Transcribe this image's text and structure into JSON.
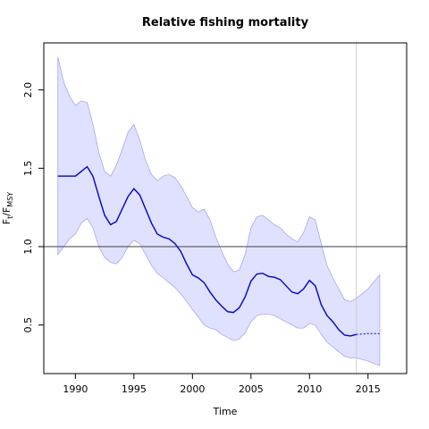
{
  "chart_data": {
    "type": "line",
    "title": "Relative fishing mortality",
    "xlabel": "Time",
    "ylabel": {
      "base": "F",
      "sub1": "t",
      "sep": "/F",
      "sub2": "MSY"
    },
    "xlim": [
      1987.3,
      2018.3
    ],
    "ylim": [
      0.19,
      2.3
    ],
    "x_ticks": [
      1990,
      1995,
      2000,
      2005,
      2010,
      2015
    ],
    "x_tick_labels": [
      "1990",
      "1995",
      "2000",
      "2005",
      "2010",
      "2015"
    ],
    "y_ticks": [
      0.5,
      1.0,
      1.5,
      2.0
    ],
    "y_tick_labels": [
      "0.5",
      "1.0",
      "1.5",
      "2.0"
    ],
    "reference_line_y": 1.0,
    "vertical_line_x": 2014,
    "colors": {
      "line": "#0000cc",
      "band_fill": "#e0e0ff",
      "band_edge": "#a8a8f0",
      "reference_line": "#555555",
      "vertical_line": "#cccccc"
    },
    "series": [
      {
        "role": "estimate",
        "x": [
          1988.5,
          1989.5,
          1990.0,
          1990.5,
          1991.0,
          1991.5,
          1992.0,
          1992.5,
          1993.0,
          1993.5,
          1994.0,
          1994.5,
          1995.0,
          1995.5,
          1996.0,
          1996.5,
          1997.0,
          1997.5,
          1998.0,
          1998.5,
          1999.0,
          1999.5,
          2000.0,
          2000.5,
          2001.0,
          2001.5,
          2002.0,
          2002.5,
          2003.0,
          2003.5,
          2004.0,
          2004.5,
          2005.0,
          2005.5,
          2006.0,
          2006.5,
          2007.0,
          2007.5,
          2008.0,
          2008.5,
          2009.0,
          2009.5,
          2010.0,
          2010.5,
          2011.0,
          2011.5,
          2012.0,
          2012.5,
          2013.0,
          2013.5,
          2014.0
        ],
        "y": [
          1.45,
          1.45,
          1.45,
          1.48,
          1.51,
          1.45,
          1.32,
          1.2,
          1.14,
          1.16,
          1.24,
          1.32,
          1.37,
          1.33,
          1.24,
          1.15,
          1.08,
          1.06,
          1.05,
          1.02,
          0.97,
          0.89,
          0.82,
          0.8,
          0.77,
          0.71,
          0.66,
          0.62,
          0.585,
          0.58,
          0.61,
          0.68,
          0.78,
          0.825,
          0.83,
          0.81,
          0.805,
          0.79,
          0.75,
          0.71,
          0.7,
          0.73,
          0.785,
          0.75,
          0.63,
          0.56,
          0.52,
          0.47,
          0.435,
          0.43,
          0.44
        ]
      },
      {
        "role": "projection",
        "x": [
          2014.0,
          2015.0,
          2016.0
        ],
        "y": [
          0.44,
          0.445,
          0.445
        ]
      }
    ],
    "band": {
      "x": [
        1988.5,
        1989.0,
        1989.5,
        1990.0,
        1990.5,
        1991.0,
        1991.5,
        1992.0,
        1992.5,
        1993.0,
        1993.5,
        1994.0,
        1994.5,
        1995.0,
        1995.5,
        1996.0,
        1996.5,
        1997.0,
        1997.5,
        1998.0,
        1998.5,
        1999.0,
        1999.5,
        2000.0,
        2000.5,
        2001.0,
        2001.5,
        2002.0,
        2002.5,
        2003.0,
        2003.5,
        2004.0,
        2004.5,
        2005.0,
        2005.5,
        2006.0,
        2006.5,
        2007.0,
        2007.5,
        2008.0,
        2008.5,
        2009.0,
        2009.5,
        2010.0,
        2010.5,
        2011.0,
        2011.5,
        2012.0,
        2012.5,
        2013.0,
        2013.5,
        2014.0,
        2015.0,
        2016.0
      ],
      "upper": [
        2.21,
        2.05,
        1.96,
        1.9,
        1.93,
        1.92,
        1.78,
        1.6,
        1.48,
        1.45,
        1.52,
        1.62,
        1.73,
        1.78,
        1.68,
        1.55,
        1.46,
        1.42,
        1.45,
        1.46,
        1.44,
        1.39,
        1.32,
        1.25,
        1.22,
        1.24,
        1.17,
        1.06,
        0.97,
        0.89,
        0.84,
        0.85,
        0.95,
        1.12,
        1.19,
        1.2,
        1.17,
        1.14,
        1.12,
        1.08,
        1.05,
        1.03,
        1.09,
        1.19,
        1.17,
        1.02,
        0.88,
        0.8,
        0.73,
        0.66,
        0.65,
        0.67,
        0.73,
        0.82
      ],
      "lower": [
        0.95,
        1.0,
        1.05,
        1.08,
        1.15,
        1.18,
        1.12,
        1.0,
        0.93,
        0.9,
        0.89,
        0.93,
        1.0,
        1.04,
        1.02,
        0.95,
        0.88,
        0.83,
        0.8,
        0.77,
        0.74,
        0.7,
        0.65,
        0.6,
        0.55,
        0.5,
        0.48,
        0.47,
        0.44,
        0.42,
        0.4,
        0.41,
        0.45,
        0.52,
        0.56,
        0.57,
        0.57,
        0.56,
        0.54,
        0.52,
        0.5,
        0.48,
        0.48,
        0.51,
        0.5,
        0.44,
        0.39,
        0.36,
        0.33,
        0.3,
        0.29,
        0.29,
        0.27,
        0.24
      ]
    }
  }
}
